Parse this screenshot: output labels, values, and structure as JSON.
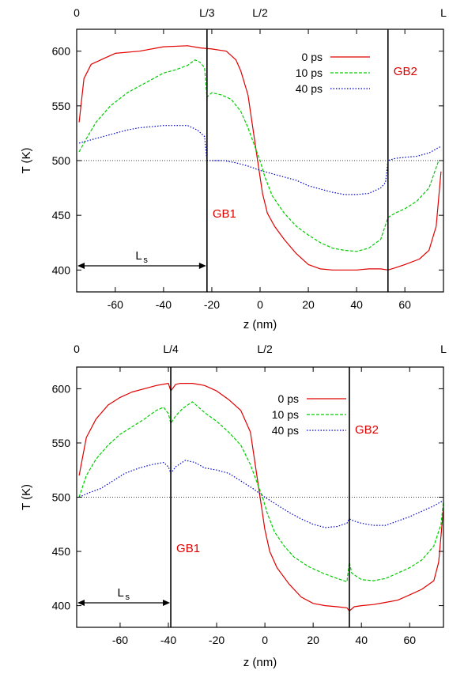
{
  "colors": {
    "s0": "#e00000",
    "s10": "#00cc00",
    "s40": "#0000cc",
    "axis": "#000000",
    "gb_label": "#e00000"
  },
  "chart_data": [
    {
      "type": "line",
      "xlabel": "z (nm)",
      "ylabel": "T (K)",
      "xlim": [
        -76,
        76
      ],
      "ylim": [
        380,
        620
      ],
      "xticks": [
        "-60",
        "-40",
        "-20",
        "0",
        "20",
        "40",
        "60"
      ],
      "yticks": [
        "400",
        "450",
        "500",
        "550",
        "600"
      ],
      "top_labels": [
        {
          "text": "0",
          "z": -76
        },
        {
          "text": "L/3",
          "z": -22
        },
        {
          "text": "L/2",
          "z": 0
        },
        {
          "text": "L",
          "z": 76
        }
      ],
      "reference_line": 500,
      "boundaries": [
        {
          "name": "GB1",
          "z": -22
        },
        {
          "name": "GB2",
          "z": 53
        }
      ],
      "ls_label": "L",
      "ls_sub": "s",
      "ls_range": [
        -76,
        -22
      ],
      "series": [
        {
          "name": "0  ps",
          "points": [
            [
              -75,
              535
            ],
            [
              -73,
              575
            ],
            [
              -70,
              588
            ],
            [
              -66,
              592
            ],
            [
              -60,
              598
            ],
            [
              -50,
              600
            ],
            [
              -40,
              604
            ],
            [
              -30,
              605
            ],
            [
              -25,
              603
            ],
            [
              -20,
              602
            ],
            [
              -14,
              600
            ],
            [
              -10,
              592
            ],
            [
              -8,
              582
            ],
            [
              -5,
              560
            ],
            [
              -3,
              530
            ],
            [
              -1,
              500
            ],
            [
              1,
              470
            ],
            [
              3,
              452
            ],
            [
              6,
              440
            ],
            [
              10,
              428
            ],
            [
              15,
              415
            ],
            [
              20,
              405
            ],
            [
              25,
              401
            ],
            [
              30,
              400
            ],
            [
              35,
              400
            ],
            [
              40,
              400
            ],
            [
              45,
              401
            ],
            [
              50,
              401
            ],
            [
              53,
              400
            ],
            [
              56,
              402
            ],
            [
              60,
              405
            ],
            [
              66,
              410
            ],
            [
              70,
              418
            ],
            [
              73,
              440
            ],
            [
              75,
              490
            ]
          ]
        },
        {
          "name": "10 ps",
          "points": [
            [
              -75,
              508
            ],
            [
              -72,
              520
            ],
            [
              -68,
              535
            ],
            [
              -62,
              550
            ],
            [
              -55,
              562
            ],
            [
              -50,
              568
            ],
            [
              -45,
              574
            ],
            [
              -40,
              580
            ],
            [
              -35,
              583
            ],
            [
              -30,
              587
            ],
            [
              -27,
              592
            ],
            [
              -25,
              590
            ],
            [
              -23,
              585
            ],
            [
              -22,
              558
            ],
            [
              -20,
              562
            ],
            [
              -16,
              560
            ],
            [
              -12,
              556
            ],
            [
              -8,
              545
            ],
            [
              -5,
              530
            ],
            [
              -2,
              512
            ],
            [
              0,
              500
            ],
            [
              2,
              485
            ],
            [
              5,
              468
            ],
            [
              10,
              452
            ],
            [
              15,
              440
            ],
            [
              20,
              432
            ],
            [
              25,
              425
            ],
            [
              30,
              420
            ],
            [
              35,
              418
            ],
            [
              40,
              417
            ],
            [
              45,
              420
            ],
            [
              50,
              428
            ],
            [
              53,
              448
            ],
            [
              56,
              452
            ],
            [
              60,
              456
            ],
            [
              65,
              463
            ],
            [
              70,
              475
            ],
            [
              74,
              500
            ]
          ]
        },
        {
          "name": "40 ps",
          "points": [
            [
              -75,
              516
            ],
            [
              -70,
              519
            ],
            [
              -65,
              522
            ],
            [
              -60,
              525
            ],
            [
              -55,
              528
            ],
            [
              -50,
              530
            ],
            [
              -45,
              531
            ],
            [
              -40,
              532
            ],
            [
              -35,
              532
            ],
            [
              -30,
              532
            ],
            [
              -26,
              528
            ],
            [
              -23,
              522
            ],
            [
              -22,
              500
            ],
            [
              -20,
              500
            ],
            [
              -15,
              500
            ],
            [
              -10,
              498
            ],
            [
              -5,
              495
            ],
            [
              0,
              491
            ],
            [
              5,
              488
            ],
            [
              10,
              485
            ],
            [
              15,
              482
            ],
            [
              20,
              477
            ],
            [
              25,
              474
            ],
            [
              30,
              471
            ],
            [
              35,
              469
            ],
            [
              40,
              469
            ],
            [
              45,
              470
            ],
            [
              50,
              475
            ],
            [
              52,
              480
            ],
            [
              53,
              500
            ],
            [
              56,
              502
            ],
            [
              60,
              503
            ],
            [
              65,
              504
            ],
            [
              70,
              507
            ],
            [
              75,
              513
            ]
          ]
        }
      ]
    },
    {
      "type": "line",
      "xlabel": "z (nm)",
      "ylabel": "T (K)",
      "xlim": [
        -78,
        74
      ],
      "ylim": [
        380,
        620
      ],
      "xticks": [
        "-60",
        "-40",
        "-20",
        "0",
        "20",
        "40",
        "60"
      ],
      "yticks": [
        "400",
        "450",
        "500",
        "550",
        "600"
      ],
      "top_labels": [
        {
          "text": "0",
          "z": -78
        },
        {
          "text": "L/4",
          "z": -39
        },
        {
          "text": "L/2",
          "z": 0
        },
        {
          "text": "L",
          "z": 74
        }
      ],
      "reference_line": 500,
      "boundaries": [
        {
          "name": "GB1",
          "z": -39
        },
        {
          "name": "GB2",
          "z": 35
        }
      ],
      "ls_label": "L",
      "ls_sub": "s",
      "ls_range": [
        -78,
        -39
      ],
      "series": [
        {
          "name": "0  ps",
          "points": [
            [
              -77,
              520
            ],
            [
              -74,
              555
            ],
            [
              -70,
              572
            ],
            [
              -65,
              585
            ],
            [
              -60,
              592
            ],
            [
              -55,
              597
            ],
            [
              -50,
              600
            ],
            [
              -45,
              603
            ],
            [
              -40,
              605
            ],
            [
              -39,
              598
            ],
            [
              -37,
              604
            ],
            [
              -35,
              605
            ],
            [
              -30,
              605
            ],
            [
              -25,
              603
            ],
            [
              -20,
              598
            ],
            [
              -15,
              590
            ],
            [
              -10,
              580
            ],
            [
              -6,
              560
            ],
            [
              -4,
              530
            ],
            [
              -2,
              500
            ],
            [
              0,
              470
            ],
            [
              2,
              450
            ],
            [
              5,
              435
            ],
            [
              10,
              420
            ],
            [
              15,
              408
            ],
            [
              20,
              402
            ],
            [
              25,
              400
            ],
            [
              30,
              399
            ],
            [
              34,
              398
            ],
            [
              35,
              395
            ],
            [
              37,
              399
            ],
            [
              40,
              400
            ],
            [
              45,
              401
            ],
            [
              50,
              403
            ],
            [
              55,
              405
            ],
            [
              60,
              410
            ],
            [
              65,
              415
            ],
            [
              70,
              423
            ],
            [
              72,
              440
            ],
            [
              74,
              490
            ]
          ]
        },
        {
          "name": "10 ps",
          "points": [
            [
              -77,
              500
            ],
            [
              -74,
              520
            ],
            [
              -70,
              535
            ],
            [
              -65,
              548
            ],
            [
              -60,
              558
            ],
            [
              -55,
              565
            ],
            [
              -50,
              572
            ],
            [
              -45,
              580
            ],
            [
              -42,
              583
            ],
            [
              -40,
              577
            ],
            [
              -39,
              568
            ],
            [
              -37,
              575
            ],
            [
              -34,
              582
            ],
            [
              -30,
              588
            ],
            [
              -25,
              578
            ],
            [
              -20,
              570
            ],
            [
              -15,
              560
            ],
            [
              -10,
              548
            ],
            [
              -6,
              530
            ],
            [
              -3,
              512
            ],
            [
              -1,
              500
            ],
            [
              1,
              485
            ],
            [
              4,
              468
            ],
            [
              8,
              455
            ],
            [
              12,
              445
            ],
            [
              18,
              436
            ],
            [
              24,
              430
            ],
            [
              30,
              425
            ],
            [
              34,
              422
            ],
            [
              35,
              440
            ],
            [
              36,
              430
            ],
            [
              40,
              424
            ],
            [
              45,
              423
            ],
            [
              50,
              425
            ],
            [
              55,
              430
            ],
            [
              60,
              435
            ],
            [
              65,
              442
            ],
            [
              70,
              455
            ],
            [
              73,
              475
            ],
            [
              74,
              496
            ]
          ]
        },
        {
          "name": "40 ps",
          "points": [
            [
              -77,
              500
            ],
            [
              -73,
              504
            ],
            [
              -68,
              508
            ],
            [
              -63,
              515
            ],
            [
              -58,
              522
            ],
            [
              -52,
              527
            ],
            [
              -47,
              530
            ],
            [
              -42,
              532
            ],
            [
              -40,
              528
            ],
            [
              -39,
              522
            ],
            [
              -37,
              528
            ],
            [
              -33,
              534
            ],
            [
              -29,
              532
            ],
            [
              -25,
              527
            ],
            [
              -20,
              525
            ],
            [
              -15,
              522
            ],
            [
              -10,
              515
            ],
            [
              -5,
              508
            ],
            [
              0,
              500
            ],
            [
              5,
              493
            ],
            [
              10,
              486
            ],
            [
              15,
              480
            ],
            [
              20,
              475
            ],
            [
              25,
              472
            ],
            [
              30,
              473
            ],
            [
              34,
              476
            ],
            [
              35,
              480
            ],
            [
              37,
              478
            ],
            [
              40,
              476
            ],
            [
              45,
              474
            ],
            [
              50,
              474
            ],
            [
              55,
              478
            ],
            [
              60,
              482
            ],
            [
              65,
              487
            ],
            [
              70,
              492
            ],
            [
              74,
              497
            ]
          ]
        }
      ]
    }
  ]
}
